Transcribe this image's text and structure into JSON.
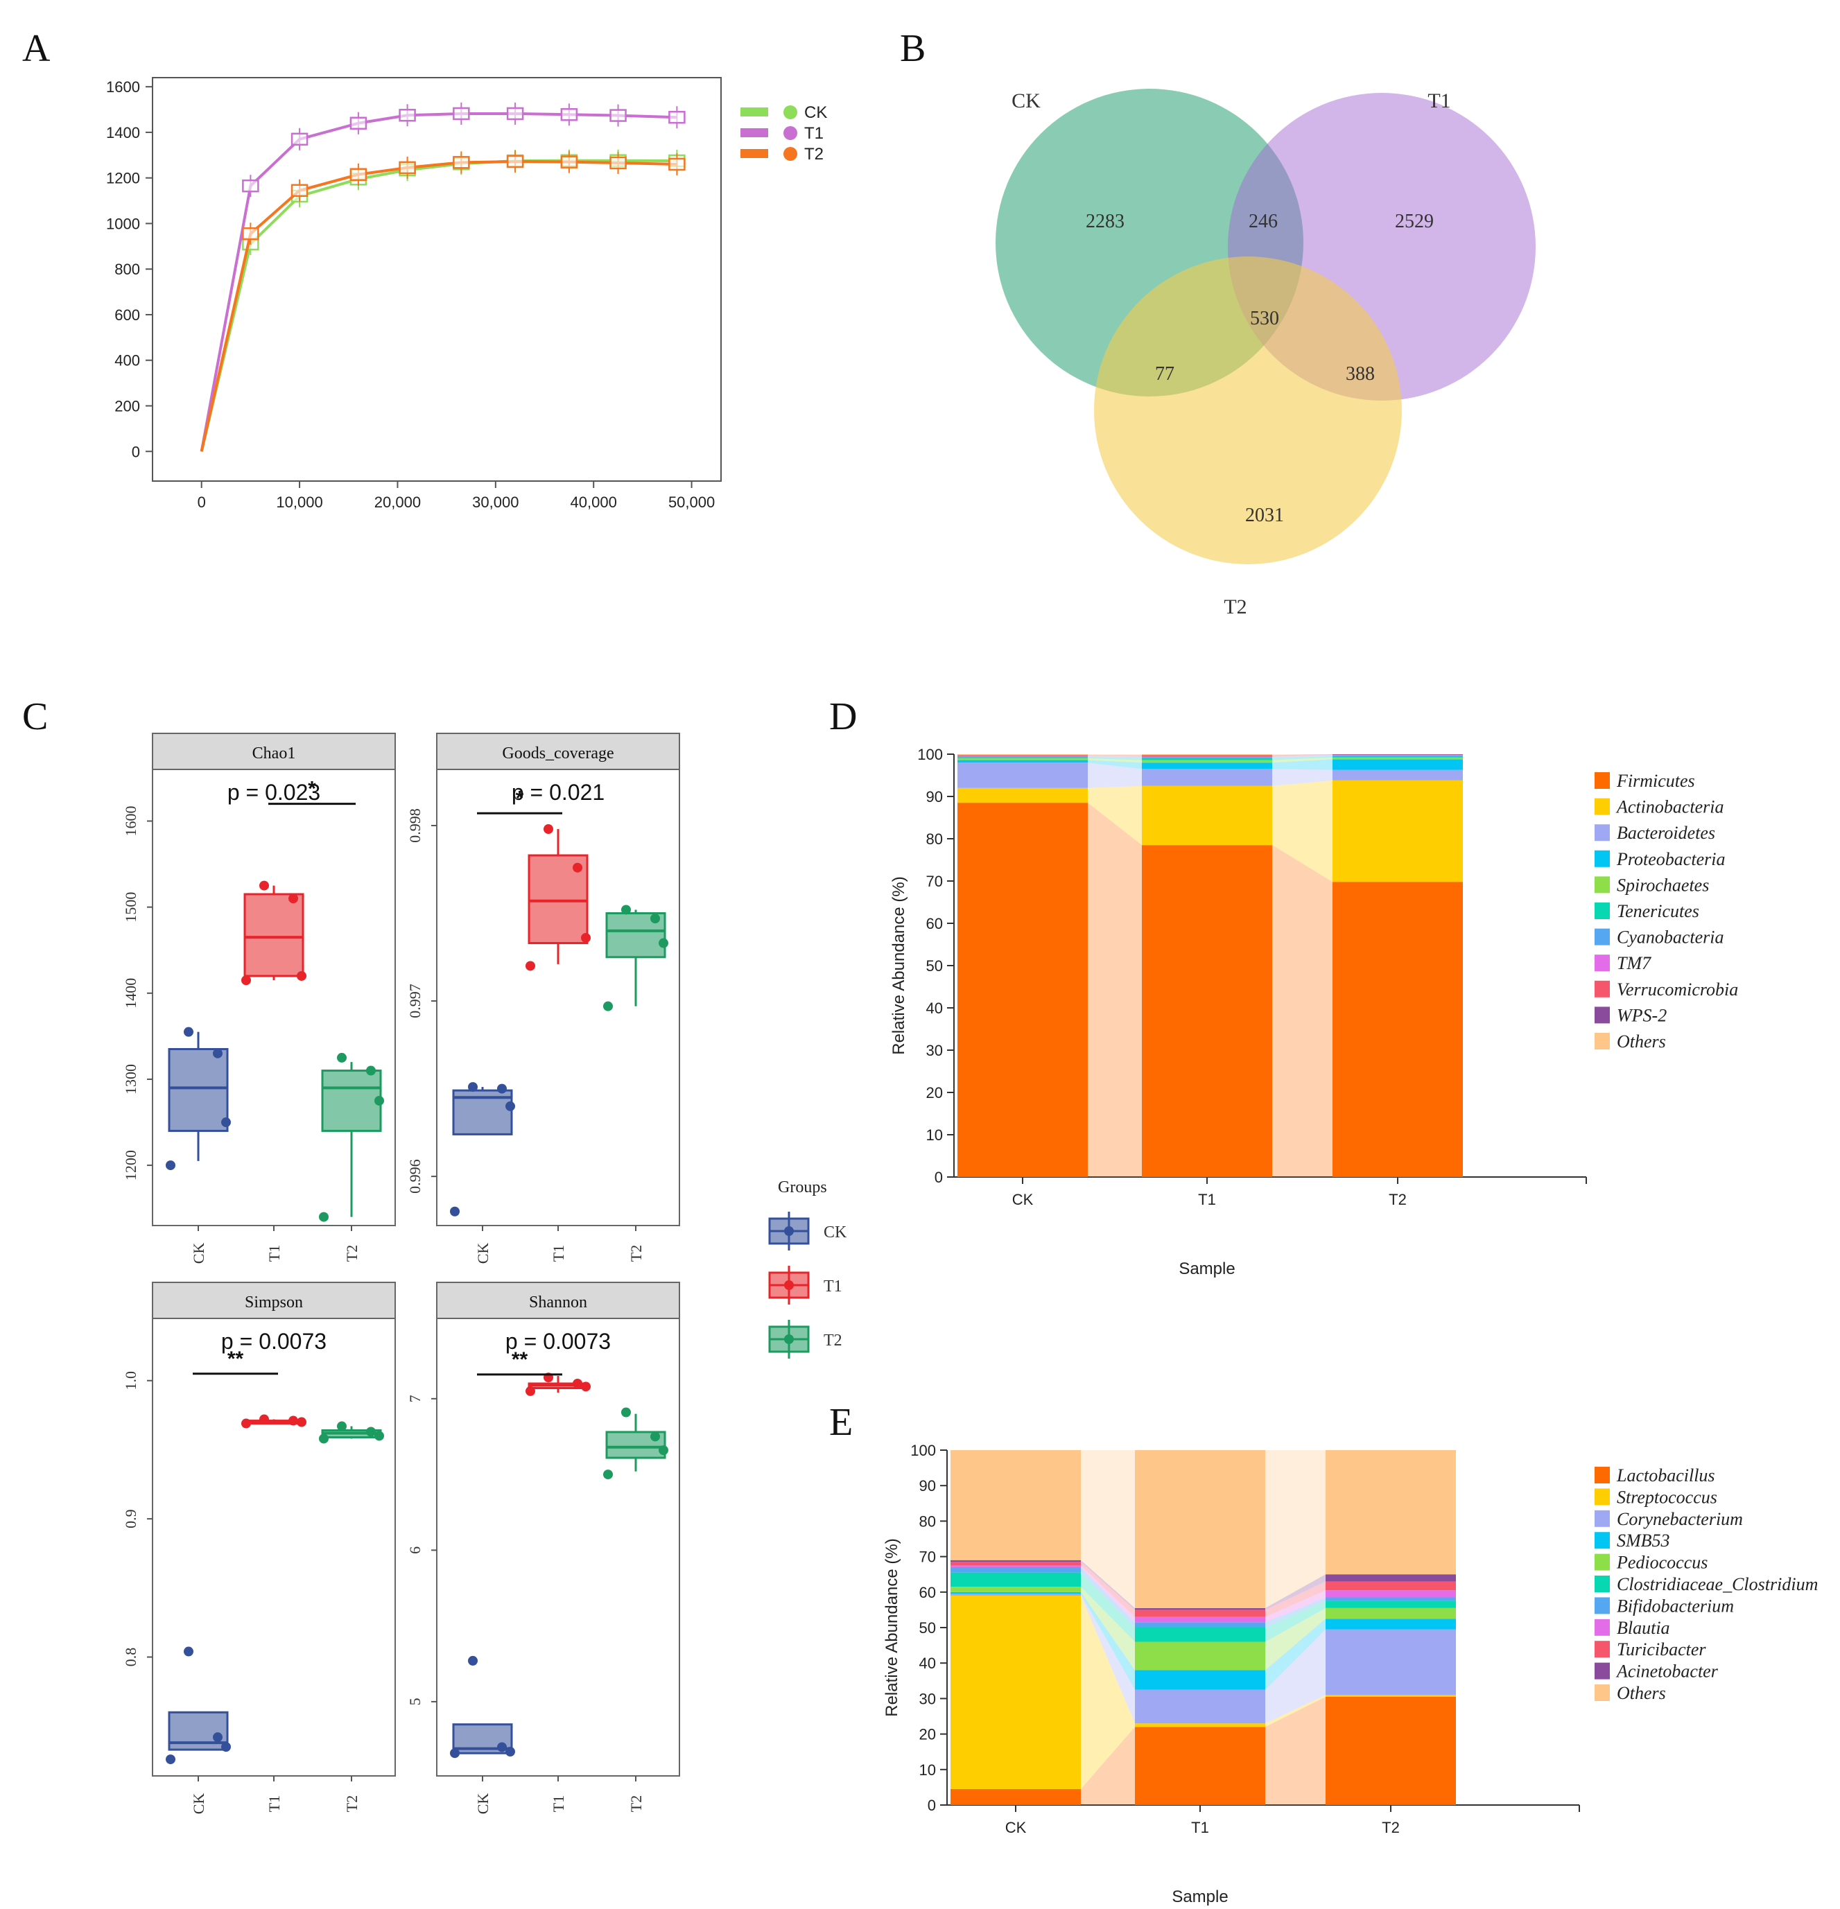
{
  "panel_labels": {
    "a": "A",
    "b": "B",
    "c": "C",
    "d": "D",
    "e": "E"
  },
  "chart_data": [
    {
      "panel": "A",
      "type": "line",
      "x": [
        0,
        5000,
        10000,
        16000,
        21000,
        26500,
        32000,
        37500,
        42500,
        48500
      ],
      "xticks": [
        "0",
        "10,000",
        "20,000",
        "30,000",
        "40,000",
        "50,000"
      ],
      "xtick_values": [
        0,
        10000,
        20000,
        30000,
        40000,
        50000
      ],
      "yticks": [
        "0",
        "200",
        "400",
        "600",
        "800",
        "1000",
        "1200",
        "1400",
        "1600"
      ],
      "ylim": [
        -130,
        1640
      ],
      "xlim": [
        -5000,
        53000
      ],
      "series": [
        {
          "name": "CK",
          "color": "#8ddc5a",
          "values": [
            0,
            910,
            1120,
            1195,
            1235,
            1262,
            1275,
            1276,
            1276,
            1275
          ]
        },
        {
          "name": "T1",
          "color": "#c86fd1",
          "values": [
            0,
            1165,
            1370,
            1440,
            1475,
            1482,
            1482,
            1478,
            1474,
            1466
          ]
        },
        {
          "name": "T2",
          "color": "#f5761f",
          "values": [
            0,
            955,
            1145,
            1215,
            1245,
            1268,
            1272,
            1270,
            1266,
            1260
          ]
        }
      ]
    },
    {
      "panel": "B",
      "type": "venn",
      "sets": [
        {
          "name": "CK",
          "color": "#1f9e6e"
        },
        {
          "name": "T1",
          "color": "#9a5fc9"
        },
        {
          "name": "T2",
          "color": "#d4b238"
        }
      ],
      "regions": {
        "ck_only": "2283",
        "t1_only": "2529",
        "t2_only": "2031",
        "ck_t1": "246",
        "ck_t2": "77",
        "t1_t2": "388",
        "all": "530"
      }
    },
    {
      "panel": "C",
      "type": "box",
      "groups": [
        "CK",
        "T1",
        "T2"
      ],
      "legend_title": "Groups",
      "group_colors": {
        "CK": "#34509b",
        "T1": "#e8242a",
        "T2": "#1c9a60"
      },
      "facets": [
        {
          "title": "Chao1",
          "pvalue": "p = 0.023",
          "yticks": [
            "1200",
            "1300",
            "1400",
            "1500",
            "1600"
          ],
          "ytick_values": [
            1200,
            1300,
            1400,
            1500,
            1600
          ],
          "ylim": [
            1130,
            1660
          ],
          "sig": {
            "label": "*",
            "from": 1,
            "to": 2,
            "y": 1620
          },
          "boxes": [
            {
              "q1": 1240,
              "med": 1290,
              "q3": 1335,
              "lo": 1205,
              "hi": 1355,
              "points": [
                1355,
                1330,
                1250,
                1200
              ]
            },
            {
              "q1": 1420,
              "med": 1465,
              "q3": 1515,
              "lo": 1415,
              "hi": 1525,
              "points": [
                1525,
                1510,
                1420,
                1415
              ]
            },
            {
              "q1": 1240,
              "med": 1290,
              "q3": 1310,
              "lo": 1140,
              "hi": 1320,
              "points": [
                1325,
                1310,
                1275,
                1140
              ]
            }
          ]
        },
        {
          "title": "Goods_coverage",
          "pvalue": "p = 0.021",
          "yticks": [
            "0.996",
            "0.997",
            "0.998"
          ],
          "ytick_values": [
            0.996,
            0.997,
            0.998
          ],
          "ylim": [
            0.99572,
            0.99832
          ],
          "sig": {
            "label": "*",
            "from": 0,
            "to": 1,
            "y": 0.99807
          },
          "boxes": [
            {
              "q1": 0.99624,
              "med": 0.99645,
              "q3": 0.99649,
              "lo": 0.99624,
              "hi": 0.99651,
              "points": [
                0.99651,
                0.9965,
                0.9964,
                0.9958
              ]
            },
            {
              "q1": 0.99733,
              "med": 0.99757,
              "q3": 0.99783,
              "lo": 0.99721,
              "hi": 0.99798,
              "points": [
                0.99798,
                0.99776,
                0.99736,
                0.9972
              ]
            },
            {
              "q1": 0.99725,
              "med": 0.9974,
              "q3": 0.9975,
              "lo": 0.99697,
              "hi": 0.99752,
              "points": [
                0.99752,
                0.99747,
                0.99733,
                0.99697
              ]
            }
          ]
        },
        {
          "title": "Simpson",
          "pvalue": "p = 0.0073",
          "yticks": [
            "0.8",
            "0.9",
            "1.0"
          ],
          "ytick_values": [
            0.8,
            0.9,
            1.0
          ],
          "ylim": [
            0.714,
            1.045
          ],
          "sig": {
            "label": "**",
            "from": 0,
            "to": 1,
            "y": 1.005
          },
          "boxes": [
            {
              "q1": 0.733,
              "med": 0.738,
              "q3": 0.76,
              "lo": 0.733,
              "hi": 0.76,
              "points": [
                0.804,
                0.742,
                0.735,
                0.726
              ]
            },
            {
              "q1": 0.969,
              "med": 0.97,
              "q3": 0.971,
              "lo": 0.969,
              "hi": 0.972,
              "points": [
                0.972,
                0.971,
                0.97,
                0.969
              ]
            },
            {
              "q1": 0.959,
              "med": 0.962,
              "q3": 0.964,
              "lo": 0.958,
              "hi": 0.967,
              "points": [
                0.967,
                0.963,
                0.96,
                0.958
              ]
            }
          ]
        },
        {
          "title": "Shannon",
          "pvalue": "p = 0.0073",
          "yticks": [
            "5",
            "6",
            "7"
          ],
          "ytick_values": [
            5,
            6,
            7
          ],
          "ylim": [
            4.51,
            7.53
          ],
          "sig": {
            "label": "**",
            "from": 0,
            "to": 1,
            "y": 7.16
          },
          "boxes": [
            {
              "q1": 4.66,
              "med": 4.69,
              "q3": 4.85,
              "lo": 4.66,
              "hi": 4.85,
              "points": [
                5.27,
                4.7,
                4.67,
                4.66
              ]
            },
            {
              "q1": 7.07,
              "med": 7.09,
              "q3": 7.1,
              "lo": 7.04,
              "hi": 7.15,
              "points": [
                7.14,
                7.1,
                7.08,
                7.05
              ]
            },
            {
              "q1": 6.61,
              "med": 6.68,
              "q3": 6.78,
              "lo": 6.52,
              "hi": 6.9,
              "points": [
                6.91,
                6.75,
                6.66,
                6.5
              ]
            }
          ]
        }
      ]
    },
    {
      "panel": "D",
      "type": "stacked_bar",
      "categories": [
        "CK",
        "T1",
        "T2"
      ],
      "xlabel": "Sample",
      "ylabel": "Relative Abundance (%)",
      "yticks": [
        "0",
        "10",
        "20",
        "30",
        "40",
        "50",
        "60",
        "70",
        "80",
        "90",
        "100"
      ],
      "ylim": [
        0,
        100
      ],
      "series": [
        {
          "name": "Firmicutes",
          "color": "#fe6a00",
          "values": [
            88.5,
            78.5,
            69.8
          ]
        },
        {
          "name": "Actinobacteria",
          "color": "#fece00",
          "values": [
            3.5,
            14.0,
            24.0
          ]
        },
        {
          "name": "Bacteroidetes",
          "color": "#9ea8f3",
          "values": [
            6.0,
            4.0,
            2.5
          ]
        },
        {
          "name": "Proteobacteria",
          "color": "#01c6f3",
          "values": [
            0.6,
            1.5,
            2.5
          ]
        },
        {
          "name": "Spirochaetes",
          "color": "#8ede49",
          "values": [
            0.4,
            0.6,
            0.4
          ]
        },
        {
          "name": "Tenericutes",
          "color": "#08d8b2",
          "values": [
            0.3,
            0.5,
            0.3
          ]
        },
        {
          "name": "Cyanobacteria",
          "color": "#55a7f1",
          "values": [
            0.2,
            0.2,
            0.2
          ]
        },
        {
          "name": "TM7",
          "color": "#e36ce8",
          "values": [
            0.1,
            0.1,
            0.1
          ]
        },
        {
          "name": "Verrucomicrobia",
          "color": "#f6566b",
          "values": [
            0.1,
            0.3,
            0.1
          ]
        },
        {
          "name": "WPS-2",
          "color": "#8a4b9d",
          "values": [
            0.1,
            0.1,
            0.1
          ]
        },
        {
          "name": "Others",
          "color": "#fec689",
          "values": [
            0.2,
            0.2,
            0.0
          ]
        }
      ]
    },
    {
      "panel": "E",
      "type": "stacked_bar",
      "categories": [
        "CK",
        "T1",
        "T2"
      ],
      "xlabel": "Sample",
      "ylabel": "Relative Abundance (%)",
      "yticks": [
        "0",
        "10",
        "20",
        "30",
        "40",
        "50",
        "60",
        "70",
        "80",
        "90",
        "100"
      ],
      "ylim": [
        0,
        100
      ],
      "series": [
        {
          "name": "Lactobacillus",
          "color": "#fe6a00",
          "values": [
            4.5,
            22.0,
            30.5
          ]
        },
        {
          "name": "Streptococcus",
          "color": "#fece00",
          "values": [
            54.5,
            1.0,
            0.5
          ]
        },
        {
          "name": "Corynebacterium",
          "color": "#9ea8f3",
          "values": [
            0.5,
            9.5,
            18.5
          ]
        },
        {
          "name": "SMB53",
          "color": "#01c6f3",
          "values": [
            0.5,
            5.5,
            3.0
          ]
        },
        {
          "name": "Pediococcus",
          "color": "#8ede49",
          "values": [
            1.5,
            8.0,
            3.0
          ]
        },
        {
          "name": "Clostridiaceae_Clostridium",
          "color": "#08d8b2",
          "values": [
            4.0,
            4.0,
            2.0
          ]
        },
        {
          "name": "Bifidobacterium",
          "color": "#55a7f1",
          "values": [
            1.5,
            1.5,
            1.0
          ]
        },
        {
          "name": "Blautia",
          "color": "#e36ce8",
          "values": [
            0.5,
            1.5,
            2.0
          ]
        },
        {
          "name": "Turicibacter",
          "color": "#f6566b",
          "values": [
            1.0,
            2.0,
            2.5
          ]
        },
        {
          "name": "Acinetobacter",
          "color": "#8a4b9d",
          "values": [
            0.5,
            0.5,
            2.0
          ]
        },
        {
          "name": "Others",
          "color": "#fec689",
          "values": [
            31.0,
            44.5,
            35.0
          ]
        }
      ]
    }
  ]
}
